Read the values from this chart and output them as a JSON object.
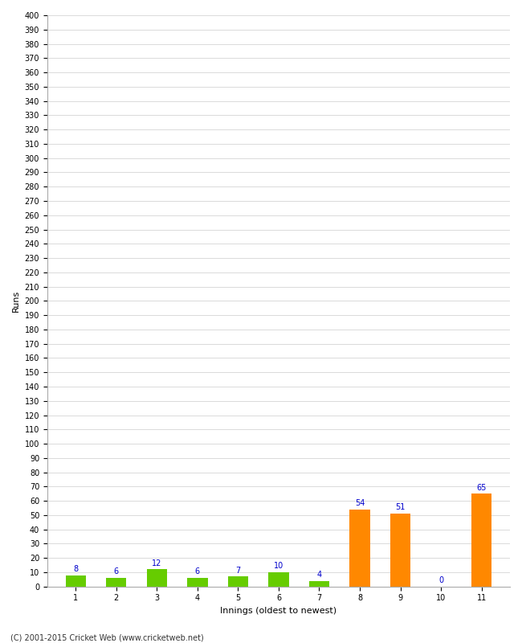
{
  "title": "",
  "xlabel": "Innings (oldest to newest)",
  "ylabel": "Runs",
  "categories": [
    "1",
    "2",
    "3",
    "4",
    "5",
    "6",
    "7",
    "8",
    "9",
    "10",
    "11"
  ],
  "values": [
    8,
    6,
    12,
    6,
    7,
    10,
    4,
    54,
    51,
    0,
    65
  ],
  "bar_colors": [
    "#66cc00",
    "#66cc00",
    "#66cc00",
    "#66cc00",
    "#66cc00",
    "#66cc00",
    "#66cc00",
    "#ff8800",
    "#ff8800",
    "#ff8800",
    "#ff8800"
  ],
  "ylim": [
    0,
    400
  ],
  "ytick_step": 10,
  "background_color": "#ffffff",
  "plot_bg_color": "#ffffff",
  "grid_color": "#cccccc",
  "label_color": "#0000cc",
  "footer": "(C) 2001-2015 Cricket Web (www.cricketweb.net)",
  "axis_label_fontsize": 8,
  "tick_fontsize": 7,
  "bar_label_fontsize": 7,
  "bar_width": 0.5
}
